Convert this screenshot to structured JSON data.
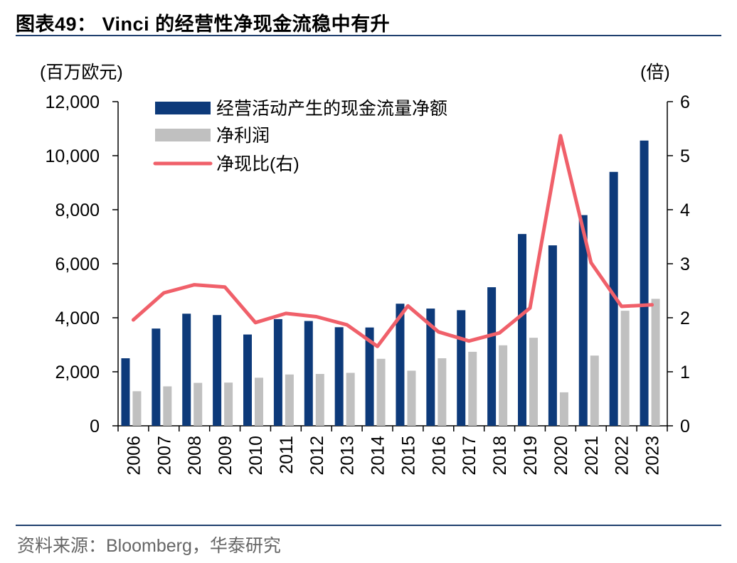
{
  "title": "图表49：  Vinci 的经营性净现金流稳中有升",
  "source": "资料来源：Bloomberg，华泰研究",
  "colors": {
    "cash_flow": "#0d3a7a",
    "net_profit": "#c0c0c0",
    "ratio": "#f0606a",
    "rule": "#1f3f6e"
  },
  "chart_data": {
    "type": "bar+line",
    "left_axis_unit": "(百万欧元)",
    "right_axis_unit": "(倍)",
    "categories": [
      "2006",
      "2007",
      "2008",
      "2009",
      "2010",
      "2011",
      "2012",
      "2013",
      "2014",
      "2015",
      "2016",
      "2017",
      "2018",
      "2019",
      "2020",
      "2021",
      "2022",
      "2023"
    ],
    "left_ticks": [
      "0",
      "2,000",
      "4,000",
      "6,000",
      "8,000",
      "10,000",
      "12,000"
    ],
    "right_ticks": [
      "0",
      "1",
      "2",
      "3",
      "4",
      "5",
      "6"
    ],
    "ylim_left": [
      0,
      12000
    ],
    "ylim_right": [
      0,
      6
    ],
    "series": [
      {
        "name": "经营活动产生的现金流量净额",
        "type": "bar",
        "axis": "left",
        "values": [
          2500,
          3600,
          4150,
          4100,
          3380,
          3950,
          3880,
          3650,
          3640,
          4520,
          4340,
          4280,
          5130,
          7100,
          6680,
          7800,
          9400,
          10560
        ]
      },
      {
        "name": "净利润",
        "type": "bar",
        "axis": "left",
        "values": [
          1280,
          1460,
          1590,
          1600,
          1780,
          1900,
          1920,
          1960,
          2480,
          2040,
          2500,
          2740,
          2980,
          3260,
          1240,
          2600,
          4260,
          4700
        ]
      },
      {
        "name": "净现比(右)",
        "type": "line",
        "axis": "right",
        "values": [
          1.96,
          2.46,
          2.61,
          2.57,
          1.91,
          2.08,
          2.02,
          1.87,
          1.47,
          2.22,
          1.74,
          1.57,
          1.72,
          2.18,
          5.37,
          3.02,
          2.21,
          2.24
        ]
      }
    ]
  }
}
